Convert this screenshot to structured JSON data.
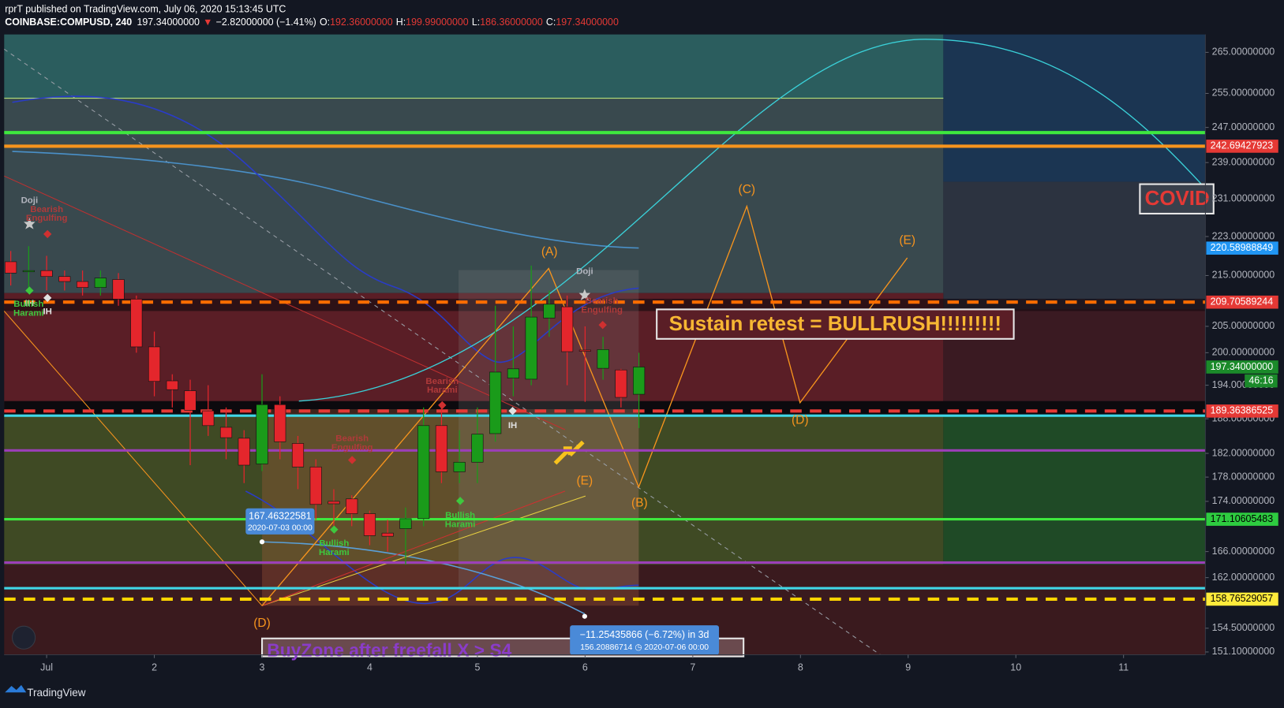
{
  "header": {
    "byline": "rprT published on TradingView.com, July 06, 2020 15:13:45 UTC",
    "symbol": "COINBASE:COMPUSD, 240",
    "price": "197.34000000",
    "arrow": "▼",
    "change": "−2.82000000 (−1.41%)",
    "ohlc": [
      {
        "key": "O:",
        "value": "192.36000000"
      },
      {
        "key": "H:",
        "value": "199.99000000"
      },
      {
        "key": "L:",
        "value": "186.36000000"
      },
      {
        "key": "C:",
        "value": "197.34000000"
      }
    ]
  },
  "chart_data": {
    "type": "candlestick",
    "log_scale": true,
    "grid": false,
    "up_color": "#1a9b1a",
    "down_color": "#e4262c",
    "x": [
      0.6667,
      0.8333,
      1,
      1.1667,
      1.3333,
      1.5,
      1.6667,
      1.8333,
      2,
      2.1667,
      2.3333,
      2.5,
      2.6667,
      2.8333,
      3,
      3.1667,
      3.3333,
      3.5,
      3.6667,
      3.8333,
      4,
      4.1667,
      4.3333,
      4.5,
      4.6667,
      4.8333,
      5,
      5.1667,
      5.3333,
      5.5,
      5.6667,
      5.8333,
      6,
      6.1667,
      6.3333,
      6.5
    ],
    "open": [
      217.8,
      215.8,
      216,
      214.8,
      213.8,
      212.6,
      214.2,
      210.3,
      201.1,
      194.8,
      193,
      189.4,
      186.5,
      184.6,
      180.2,
      190.5,
      183.7,
      179.7,
      174,
      174.4,
      172,
      168.9,
      169.6,
      171.2,
      186.8,
      178.9,
      180.5,
      185.4,
      195.3,
      195.1,
      206.6,
      208.8,
      200.5,
      197.1,
      196.8,
      192.36
    ],
    "high": [
      220,
      221,
      219,
      216,
      216,
      216,
      215.5,
      211,
      204,
      196,
      195,
      194,
      190,
      186,
      196,
      192,
      185,
      181,
      176,
      175,
      172.5,
      171,
      173,
      190,
      190,
      186,
      190,
      209,
      205,
      217,
      212,
      211,
      205,
      203,
      197,
      199.99
    ],
    "low": [
      213,
      212,
      212,
      212,
      211,
      211,
      209,
      200,
      192,
      190,
      180,
      185,
      181,
      177,
      179,
      181,
      176,
      171,
      170,
      170,
      167,
      166,
      164,
      170,
      177,
      177,
      177,
      184,
      192,
      194,
      203,
      194,
      191,
      195,
      190,
      186.36
    ],
    "close": [
      215.5,
      216,
      214.8,
      213.8,
      212.6,
      214.5,
      210.3,
      201.1,
      194.7,
      193.2,
      189.5,
      186.8,
      184.7,
      180,
      190.5,
      184,
      179.7,
      173.5,
      173.6,
      172,
      168.5,
      168.4,
      171.2,
      186.8,
      178.9,
      180.5,
      185.3,
      196.4,
      197,
      206.8,
      209.3,
      200.2,
      200.4,
      200.6,
      191.8,
      197.34
    ],
    "xlim": [
      0.605,
      11.76
    ],
    "xticks": [
      {
        "value": 1,
        "label": "Jul"
      },
      2,
      3,
      4,
      5,
      6,
      7,
      8,
      9,
      10,
      11
    ],
    "ylim": [
      150.7,
      269.5
    ],
    "yticks": [
      {
        "value": 265,
        "label": "265.00000000"
      },
      {
        "value": 255,
        "label": "255.00000000"
      },
      {
        "value": 247,
        "label": "247.00000000"
      },
      {
        "value": 239,
        "label": "239.00000000"
      },
      {
        "value": 231,
        "label": "231.00000000"
      },
      {
        "value": 223,
        "label": "223.00000000"
      },
      {
        "value": 215,
        "label": "215.00000000"
      },
      {
        "value": 205,
        "label": "205.00000000"
      },
      {
        "value": 200,
        "label": "200.00000000"
      },
      {
        "value": 194,
        "label": "194.00000000"
      },
      {
        "value": 188,
        "label": "188.00000000"
      },
      {
        "value": 182,
        "label": "182.00000000"
      },
      {
        "value": 178,
        "label": "178.00000000"
      },
      {
        "value": 174,
        "label": "174.00000000"
      },
      {
        "value": 166,
        "label": "166.00000000"
      },
      {
        "value": 162,
        "label": "162.00000000"
      },
      {
        "value": 154.5,
        "label": "154.50000000"
      },
      {
        "value": 151.1,
        "label": "151.10000000"
      }
    ],
    "price_lines": [
      {
        "value": 245.8,
        "color": "#3ee83e",
        "width": 4
      },
      {
        "value": 242.69427923,
        "label": "242.69427923",
        "color": "#f7941d",
        "width": 4,
        "label_bg": "#e53935",
        "label_color": "#ffffff"
      },
      {
        "value": 220.58988849,
        "label": "220.58988849",
        "label_bg": "#2196f3",
        "label_color": "#ffffff"
      },
      {
        "value": 209.70589244,
        "label": "209.70589244",
        "color": "#ff6d00",
        "width": 4,
        "dash": true,
        "label_bg": "#e53935",
        "label_color": "#ffffff"
      },
      {
        "value": 197.34,
        "label": "197.34000000",
        "label_bg": "#1b8a2a",
        "label_color": "#ffffff"
      },
      {
        "value": 189.36386525,
        "label": "189.36386525",
        "color": "#e53935",
        "width": 4,
        "dash": true,
        "label_bg": "#e53935",
        "label_color": "#ffffff"
      },
      {
        "value": 188.55,
        "color": "#40d8e8",
        "width": 3
      },
      {
        "value": 182.5,
        "color": "#9c3fb8",
        "width": 3
      },
      {
        "value": 171.10605483,
        "label": "171.10605483",
        "color": "#3ee83e",
        "width": 3,
        "label_bg": "#2ecc40",
        "label_color": "#000000"
      },
      {
        "value": 164.3,
        "color": "#9c3fb8",
        "width": 3
      },
      {
        "value": 160.4,
        "color": "#40d8e8",
        "width": 3
      },
      {
        "value": 158.76529057,
        "label": "158.76529057",
        "color": "#ffd500",
        "width": 4,
        "dash": true,
        "label_bg": "#ffeb3b",
        "label_color": "#000000"
      }
    ],
    "countdown": "46:16",
    "annotations": [
      {
        "lines": [
          "Doji"
        ]
      },
      {
        "lines": [
          "Bearish",
          "Engulfing"
        ]
      },
      {
        "lines": [
          "IH"
        ]
      },
      {
        "lines": [
          "Bullish",
          "Harami"
        ]
      },
      {
        "lines": [
          "IH"
        ]
      },
      {
        "lines": [
          "Bearish",
          "Engulfing"
        ]
      },
      {
        "lines": [
          "Bearish",
          "Harami"
        ]
      },
      {
        "lines": [
          "Bullish",
          "Harami"
        ]
      },
      {
        "lines": [
          "Bullish",
          "Harami"
        ]
      },
      {
        "lines": [
          "IH"
        ]
      },
      {
        "lines": [
          "Doji"
        ]
      },
      {
        "lines": [
          "Bearish",
          "Engulfing"
        ]
      }
    ],
    "waves": [
      "(A)",
      "(B)",
      "(C)",
      "(D)",
      "(E)",
      "(D)",
      "(E)"
    ],
    "notes": {
      "bullrush": "Sustain retest = BULLRUSH!!!!!!!!!",
      "covid": "COVID",
      "buyzone": "BuyZone after freefall X > S4"
    },
    "measure": {
      "start_price": "167.46322581",
      "start_date": "2020-07-03 00:00",
      "delta": "−11.25435866 (−6.72%) in 3d",
      "end": "156.20886714 ◷ 2020-07-06  00:00"
    }
  },
  "footer": {
    "brand": "TradingView"
  }
}
